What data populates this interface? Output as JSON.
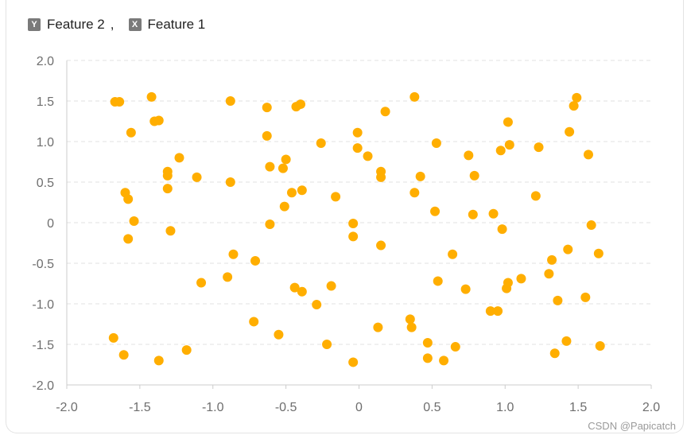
{
  "legend": {
    "y_badge": "Y",
    "y_label": "Feature 2",
    "separator": ",",
    "x_badge": "X",
    "x_label": "Feature 1"
  },
  "watermark": "CSDN @Papicatch",
  "colors": {
    "point": "#FFAE00",
    "grid": "#E0E0E0",
    "axis": "#CCCCCC",
    "tick_text": "#6E6E6E"
  },
  "chart_data": {
    "type": "scatter",
    "xlabel": "Feature 1",
    "ylabel": "Feature 2",
    "xlim": [
      -2.0,
      2.0
    ],
    "ylim": [
      -2.0,
      2.0
    ],
    "x_ticks": [
      "-2.0",
      "-1.5",
      "-1.0",
      "-0.5",
      "0",
      "0.5",
      "1.0",
      "1.5",
      "2.0"
    ],
    "y_ticks": [
      "2.0",
      "1.5",
      "1.0",
      "0.5",
      "0",
      "-0.5",
      "-1.0",
      "-1.5",
      "-2.0"
    ],
    "grid": true,
    "series": [
      {
        "points": [
          [
            -1.67,
            1.49
          ],
          [
            -1.64,
            1.49
          ],
          [
            -1.42,
            1.55
          ],
          [
            -1.4,
            1.25
          ],
          [
            -1.37,
            1.26
          ],
          [
            -1.56,
            1.11
          ],
          [
            -1.23,
            0.8
          ],
          [
            -1.31,
            0.63
          ],
          [
            -1.31,
            0.58
          ],
          [
            -1.11,
            0.56
          ],
          [
            -1.31,
            0.42
          ],
          [
            -1.6,
            0.37
          ],
          [
            -1.58,
            0.29
          ],
          [
            -1.54,
            0.02
          ],
          [
            -1.29,
            -0.1
          ],
          [
            -1.58,
            -0.2
          ],
          [
            -0.88,
            1.5
          ],
          [
            -0.63,
            1.42
          ],
          [
            -0.63,
            1.07
          ],
          [
            -0.61,
            0.69
          ],
          [
            -0.5,
            0.78
          ],
          [
            -0.52,
            0.67
          ],
          [
            -0.88,
            0.5
          ],
          [
            -0.46,
            0.37
          ],
          [
            -0.39,
            0.4
          ],
          [
            -0.51,
            0.2
          ],
          [
            -0.61,
            -0.02
          ],
          [
            -0.86,
            -0.39
          ],
          [
            -0.71,
            -0.47
          ],
          [
            -1.08,
            -0.74
          ],
          [
            -0.9,
            -0.67
          ],
          [
            -0.44,
            -0.8
          ],
          [
            -0.39,
            -0.85
          ],
          [
            -0.29,
            -1.01
          ],
          [
            -0.19,
            -0.78
          ],
          [
            -0.72,
            -1.22
          ],
          [
            -0.55,
            -1.38
          ],
          [
            -0.22,
            -1.5
          ],
          [
            -1.18,
            -1.57
          ],
          [
            -1.68,
            -1.42
          ],
          [
            -1.61,
            -1.63
          ],
          [
            -1.37,
            -1.7
          ],
          [
            -0.43,
            1.43
          ],
          [
            -0.4,
            1.46
          ],
          [
            -0.26,
            0.98
          ],
          [
            -0.16,
            0.32
          ],
          [
            0.38,
            1.55
          ],
          [
            0.18,
            1.37
          ],
          [
            -0.01,
            1.11
          ],
          [
            -0.01,
            0.92
          ],
          [
            0.06,
            0.82
          ],
          [
            0.15,
            0.63
          ],
          [
            0.15,
            0.56
          ],
          [
            0.42,
            0.57
          ],
          [
            0.38,
            0.37
          ],
          [
            -0.04,
            -0.01
          ],
          [
            -0.04,
            -0.17
          ],
          [
            0.15,
            -0.28
          ],
          [
            0.53,
            0.98
          ],
          [
            0.52,
            0.14
          ],
          [
            0.54,
            -0.72
          ],
          [
            0.64,
            -0.39
          ],
          [
            0.73,
            -0.82
          ],
          [
            0.75,
            0.83
          ],
          [
            0.79,
            0.58
          ],
          [
            0.78,
            0.1
          ],
          [
            0.35,
            -1.19
          ],
          [
            0.36,
            -1.29
          ],
          [
            0.13,
            -1.29
          ],
          [
            0.47,
            -1.48
          ],
          [
            0.47,
            -1.67
          ],
          [
            0.58,
            -1.7
          ],
          [
            0.66,
            -1.53
          ],
          [
            -0.04,
            -1.72
          ],
          [
            1.02,
            1.24
          ],
          [
            1.03,
            0.96
          ],
          [
            0.97,
            0.89
          ],
          [
            0.92,
            0.11
          ],
          [
            0.98,
            -0.08
          ],
          [
            1.02,
            -0.74
          ],
          [
            1.01,
            -0.81
          ],
          [
            1.11,
            -0.69
          ],
          [
            0.9,
            -1.09
          ],
          [
            0.95,
            -1.09
          ],
          [
            1.23,
            0.93
          ],
          [
            1.21,
            0.33
          ],
          [
            1.44,
            1.12
          ],
          [
            1.49,
            1.54
          ],
          [
            1.47,
            1.44
          ],
          [
            1.57,
            0.84
          ],
          [
            1.59,
            -0.03
          ],
          [
            1.64,
            -0.38
          ],
          [
            1.32,
            -0.46
          ],
          [
            1.43,
            -0.33
          ],
          [
            1.3,
            -0.63
          ],
          [
            1.36,
            -0.96
          ],
          [
            1.55,
            -0.92
          ],
          [
            1.42,
            -1.46
          ],
          [
            1.34,
            -1.61
          ],
          [
            1.65,
            -1.52
          ]
        ]
      }
    ]
  }
}
